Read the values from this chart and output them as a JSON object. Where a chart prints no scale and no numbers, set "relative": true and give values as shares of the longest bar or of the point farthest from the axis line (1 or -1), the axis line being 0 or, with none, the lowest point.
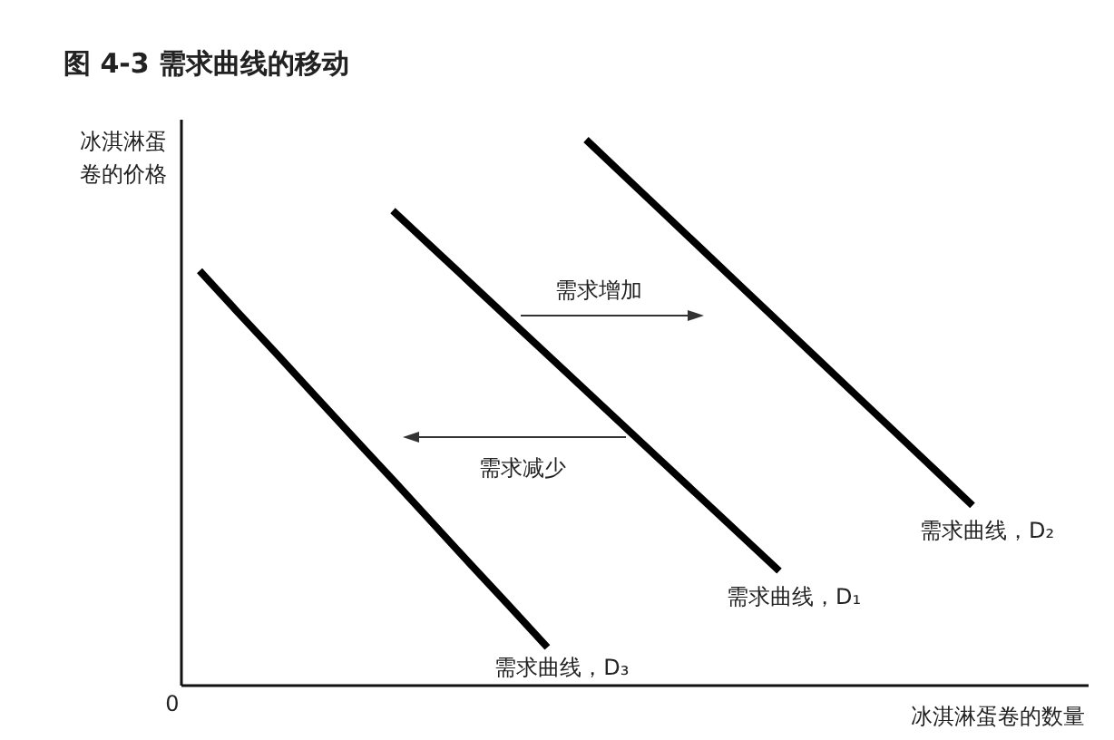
{
  "chart_data": {
    "type": "line",
    "relative": true,
    "title": "图 4-3 需求曲线的移动",
    "xlabel": "冰淇淋蛋卷的数量",
    "ylabel": "冰淇淋蛋卷的价格",
    "annotations": [
      "需求增加",
      "需求减少",
      "0"
    ],
    "categories": [
      null,
      null,
      null,
      null,
      null,
      null,
      null,
      null,
      null,
      null,
      null,
      null,
      null,
      null,
      null,
      null,
      null,
      null,
      null,
      null,
      null
    ],
    "series": [
      {
        "name": "需求曲线，D₂",
        "color": "#000000",
        "values": [
          null,
          null,
          null,
          null,
          null,
          null,
          null,
          null,
          null,
          null,
          1.0,
          0.933,
          0.866,
          0.799,
          0.732,
          0.665,
          0.598,
          0.531,
          0.464,
          0.397,
          0.33
        ]
      },
      {
        "name": "需求曲线，D₁",
        "color": "#000000",
        "values": [
          null,
          null,
          null,
          null,
          null,
          0.87,
          0.804,
          0.738,
          0.672,
          0.606,
          0.54,
          0.474,
          0.408,
          0.342,
          0.276,
          0.21,
          null,
          null,
          null,
          null,
          null
        ]
      },
      {
        "name": "需求曲线，D₃",
        "color": "#000000",
        "values": [
          0.76,
          0.683,
          0.607,
          0.53,
          0.453,
          0.377,
          0.3,
          0.223,
          0.147,
          0.07,
          null,
          null,
          null,
          null,
          null,
          null,
          null,
          null,
          null,
          null,
          null
        ]
      }
    ]
  }
}
